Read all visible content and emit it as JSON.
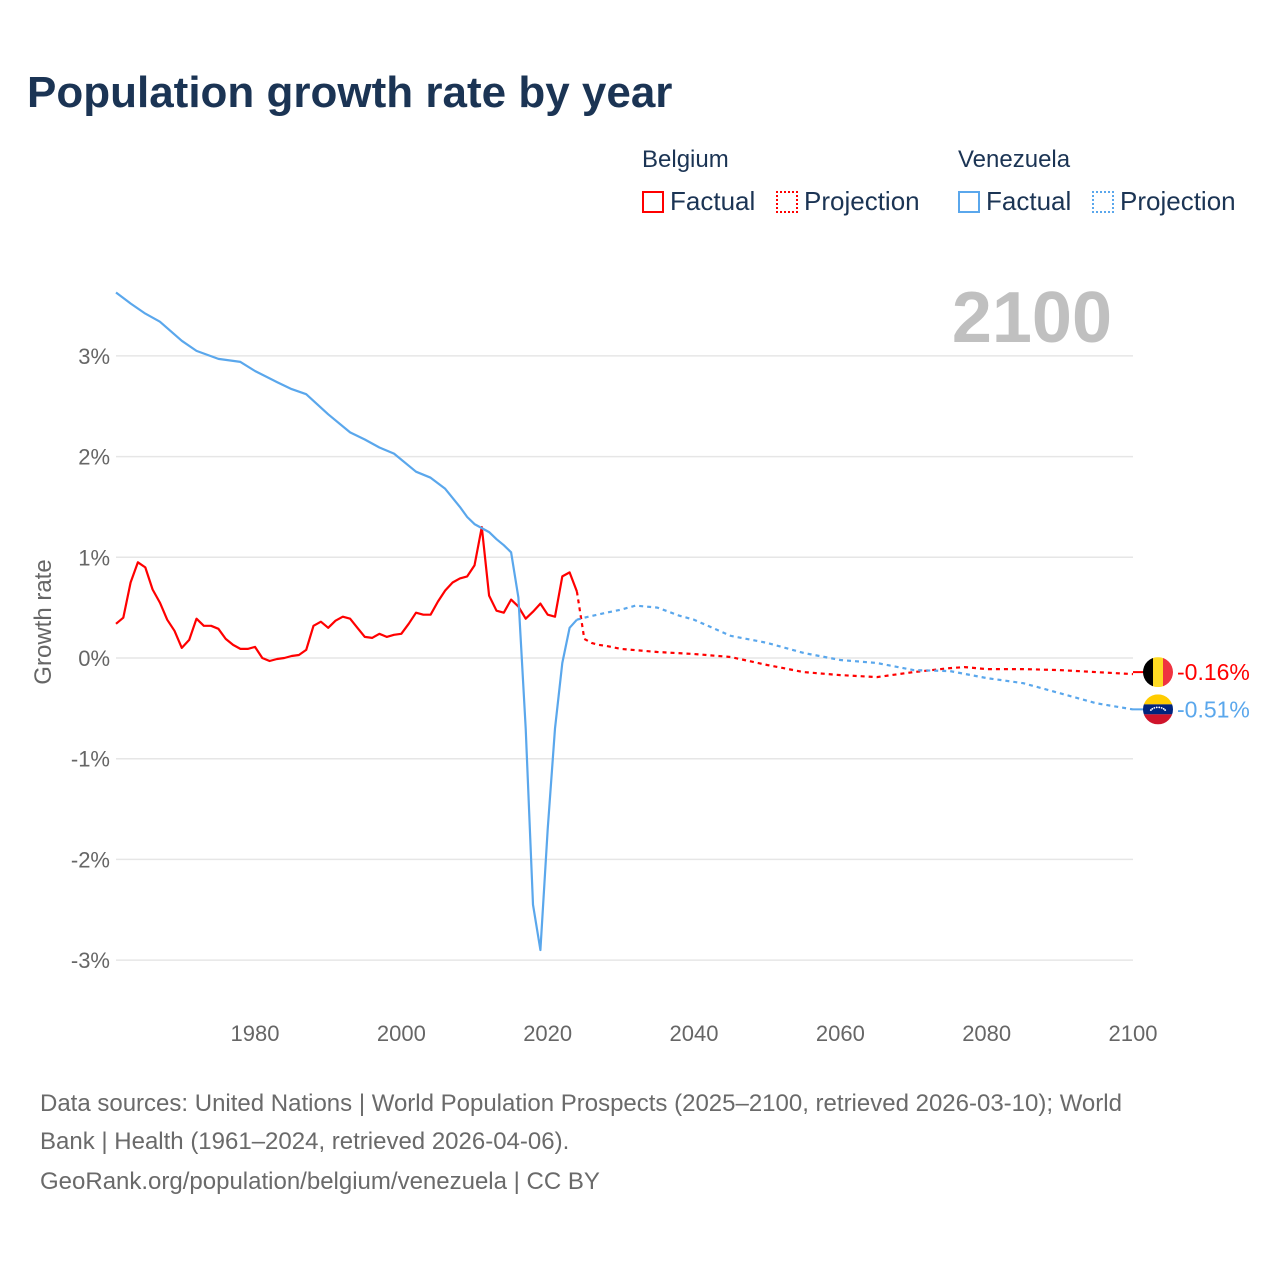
{
  "title": "Population growth rate by year",
  "legend": {
    "groups": [
      {
        "name": "Belgium",
        "factual": "Factual",
        "projection": "Projection",
        "color": "#ff0000"
      },
      {
        "name": "Venezuela",
        "factual": "Factual",
        "projection": "Projection",
        "color": "#5aa7ec"
      }
    ]
  },
  "year_label": "2100",
  "footer": {
    "line1": "Data sources: United Nations | World Population Prospects (2025–2100, retrieved 2026-03-10); World",
    "line2": "Bank | Health (1961–2024, retrieved 2026-04-06).",
    "line3": "GeoRank.org/population/belgium/venezuela | CC BY"
  },
  "chart_data": {
    "type": "line",
    "title": "Population growth rate by year",
    "ylabel": "Growth rate",
    "xlabel": "",
    "xlim": [
      1961,
      2100
    ],
    "ylim": [
      -3.5,
      3.8
    ],
    "xticks": [
      1980,
      2000,
      2020,
      2040,
      2060,
      2080,
      2100
    ],
    "xtick_labels": [
      "1980",
      "2000",
      "2020",
      "2040",
      "2060",
      "2080",
      "2100"
    ],
    "yticks": [
      3,
      2,
      1,
      0,
      -1,
      -2,
      -3
    ],
    "ytick_labels": [
      "3%",
      "2%",
      "1%",
      "0%",
      "-1%",
      "-2%",
      "-3%"
    ],
    "grid": true,
    "legend_position": "top-right",
    "series": [
      {
        "name": "Belgium Factual",
        "color": "#ff0000",
        "dashed": false,
        "x": [
          1961,
          1962,
          1963,
          1964,
          1965,
          1966,
          1967,
          1968,
          1969,
          1970,
          1971,
          1972,
          1973,
          1974,
          1975,
          1976,
          1977,
          1978,
          1979,
          1980,
          1981,
          1982,
          1983,
          1984,
          1985,
          1986,
          1987,
          1988,
          1989,
          1990,
          1991,
          1992,
          1993,
          1994,
          1995,
          1996,
          1997,
          1998,
          1999,
          2000,
          2001,
          2002,
          2003,
          2004,
          2005,
          2006,
          2007,
          2008,
          2009,
          2010,
          2011,
          2012,
          2013,
          2014,
          2015,
          2016,
          2017,
          2018,
          2019,
          2020,
          2021,
          2022,
          2023,
          2024
        ],
        "y": [
          0.34,
          0.4,
          0.75,
          0.95,
          0.9,
          0.68,
          0.55,
          0.38,
          0.27,
          0.1,
          0.18,
          0.39,
          0.32,
          0.32,
          0.29,
          0.19,
          0.13,
          0.09,
          0.09,
          0.11,
          0.0,
          -0.03,
          -0.01,
          0.0,
          0.02,
          0.03,
          0.08,
          0.32,
          0.36,
          0.3,
          0.37,
          0.41,
          0.39,
          0.3,
          0.21,
          0.2,
          0.24,
          0.21,
          0.23,
          0.24,
          0.34,
          0.45,
          0.43,
          0.43,
          0.56,
          0.67,
          0.75,
          0.79,
          0.81,
          0.92,
          1.3,
          0.62,
          0.47,
          0.45,
          0.58,
          0.51,
          0.39,
          0.46,
          0.54,
          0.43,
          0.41,
          0.81,
          0.85,
          0.66
        ]
      },
      {
        "name": "Belgium Projection",
        "color": "#ff0000",
        "dashed": true,
        "x": [
          2024,
          2025,
          2026,
          2027,
          2028,
          2030,
          2035,
          2040,
          2045,
          2050,
          2055,
          2060,
          2065,
          2070,
          2075,
          2077,
          2080,
          2085,
          2090,
          2095,
          2100
        ],
        "y": [
          0.66,
          0.19,
          0.15,
          0.13,
          0.12,
          0.09,
          0.06,
          0.04,
          0.01,
          -0.07,
          -0.14,
          -0.17,
          -0.19,
          -0.14,
          -0.1,
          -0.09,
          -0.11,
          -0.11,
          -0.12,
          -0.14,
          -0.16
        ]
      },
      {
        "name": "Venezuela Factual",
        "color": "#5aa7ec",
        "dashed": false,
        "x": [
          1961,
          1963,
          1965,
          1967,
          1970,
          1972,
          1975,
          1978,
          1980,
          1983,
          1985,
          1987,
          1990,
          1993,
          1995,
          1997,
          1999,
          2002,
          2004,
          2006,
          2008,
          2009,
          2010,
          2011,
          2012,
          2013,
          2014,
          2015,
          2016,
          2017,
          2018,
          2019,
          2020,
          2021,
          2022,
          2023,
          2024
        ],
        "y": [
          3.63,
          3.52,
          3.42,
          3.34,
          3.15,
          3.05,
          2.97,
          2.94,
          2.85,
          2.74,
          2.67,
          2.62,
          2.42,
          2.24,
          2.17,
          2.09,
          2.03,
          1.85,
          1.79,
          1.68,
          1.5,
          1.4,
          1.33,
          1.29,
          1.25,
          1.18,
          1.12,
          1.05,
          0.6,
          -0.7,
          -2.45,
          -2.9,
          -1.7,
          -0.7,
          -0.05,
          0.3,
          0.38
        ]
      },
      {
        "name": "Venezuela Projection",
        "color": "#5aa7ec",
        "dashed": true,
        "x": [
          2024,
          2025,
          2028,
          2030,
          2032,
          2035,
          2038,
          2040,
          2045,
          2050,
          2055,
          2060,
          2065,
          2070,
          2075,
          2080,
          2085,
          2090,
          2095,
          2100
        ],
        "y": [
          0.38,
          0.4,
          0.45,
          0.48,
          0.52,
          0.5,
          0.42,
          0.38,
          0.22,
          0.15,
          0.05,
          -0.02,
          -0.05,
          -0.12,
          -0.13,
          -0.2,
          -0.25,
          -0.35,
          -0.45,
          -0.51
        ]
      }
    ],
    "end_labels": [
      {
        "country": "Belgium",
        "text": "-0.16%",
        "color": "#ff0000",
        "value": -0.16
      },
      {
        "country": "Venezuela",
        "text": "-0.51%",
        "color": "#5aa7ec",
        "value": -0.51
      }
    ]
  }
}
